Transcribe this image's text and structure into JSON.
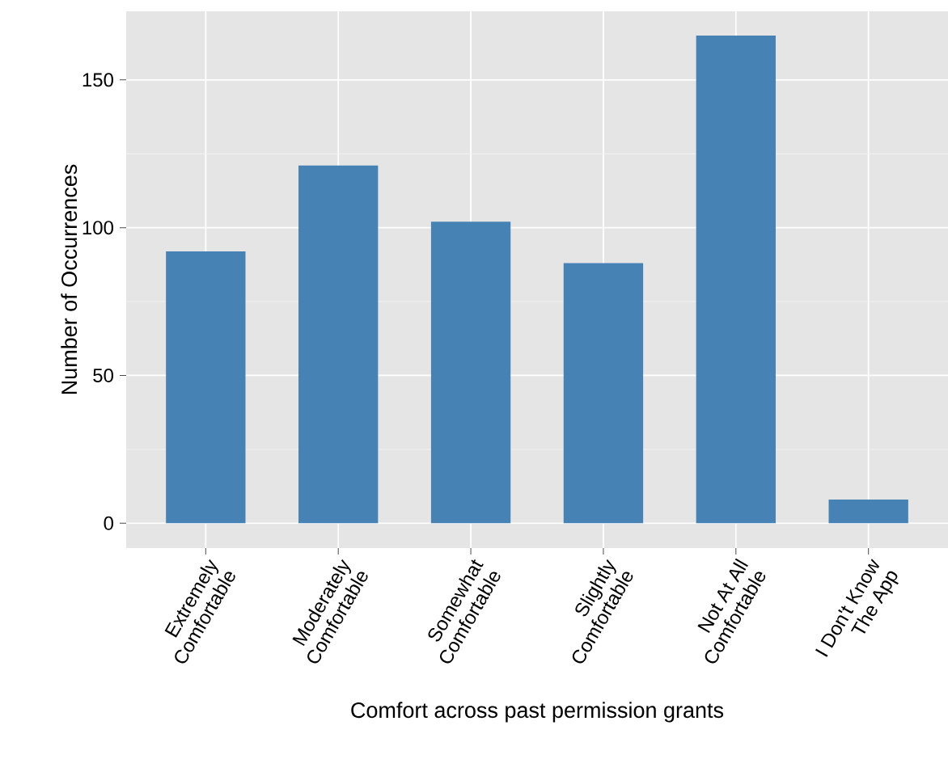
{
  "chart_data": {
    "type": "bar",
    "xlabel": "Comfort across past permission grants",
    "ylabel": "Number of Occurrences",
    "categories": [
      "Extremely Comfortable",
      "Moderately Comfortable",
      "Somewhat Comfortable",
      "Slightly Comfortable",
      "Not At All Comfortable",
      "I Don't Know The App"
    ],
    "values": [
      92,
      121,
      102,
      88,
      165,
      8
    ],
    "color": "#4682b4",
    "ylim": [
      -8.4,
      173.2
    ],
    "yticks": [
      0,
      50,
      100,
      150
    ],
    "grid": true
  }
}
